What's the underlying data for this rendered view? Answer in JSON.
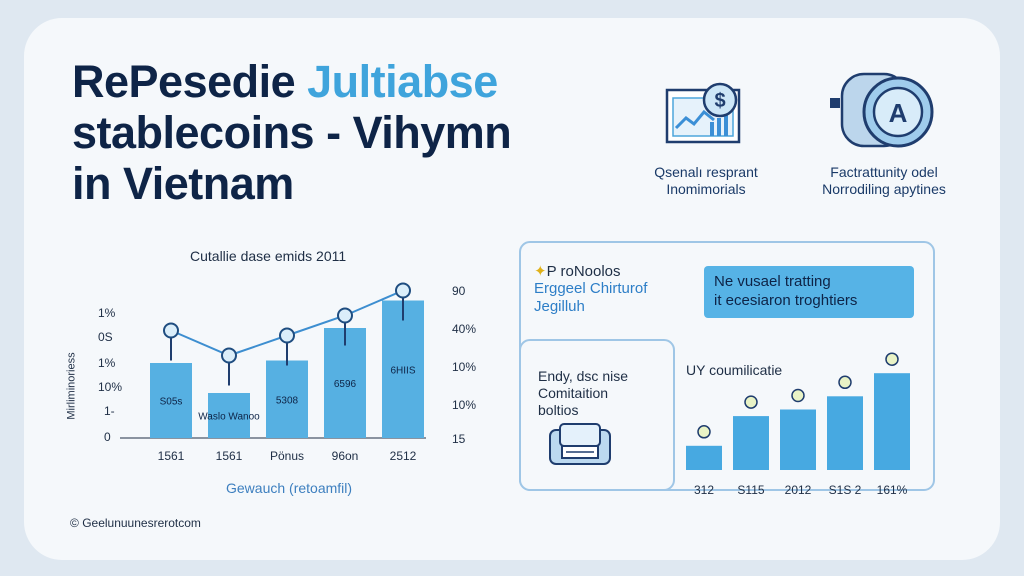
{
  "title": {
    "line1a": "RePesedie",
    "line1b": "Jultiabse",
    "line2": "stablecoins - Vihymn",
    "line3": "in Vietnam"
  },
  "icons": [
    {
      "name": "dollar-chart-icon",
      "caption1": "Qsenalı resprant",
      "caption2": "Inomimorials"
    },
    {
      "name": "coin-device-icon",
      "caption1": "Factrattunity odel",
      "caption2": "Norrodiling apytines"
    }
  ],
  "left_chart": {
    "title": "Cutallie dase emids 2011",
    "y_left_ticks": [
      "1%",
      "0S",
      "1%",
      "10%",
      "1-",
      "0"
    ],
    "y_right_ticks": [
      "90",
      "40%",
      "10%",
      "10%",
      "15"
    ],
    "y_axis_title": "Mirliminoriess",
    "x_axis_title": "Gewauch (retoamfil)"
  },
  "right_panel": {
    "header_line1": "P roNoolos",
    "header_line2": "Erggeel Chirturof",
    "header_line3": "Jegilluh",
    "callout_line1": "Ne vusael tratting",
    "callout_line2": "it ecesiaron troghtiers",
    "sub_line1": "Endy, dsc nise",
    "sub_line2": "Comitaition",
    "sub_line3": "boltios",
    "chart_title": "UY coumilicatie"
  },
  "footer": {
    "symbol": "©",
    "text": "Geelunuunesrerotcom"
  },
  "chart_data": [
    {
      "type": "bar",
      "title": "Cutallie dase emids 2011",
      "xlabel": "Gewauch (retoamfil)",
      "ylabel": "Mirliminoriess",
      "categories": [
        "1561",
        "1561",
        "Pönus",
        "96on",
        "2512"
      ],
      "values": [
        3.0,
        1.8,
        3.1,
        4.4,
        5.5
      ],
      "ylim": [
        0,
        6
      ],
      "bar_labels": [
        "S05s",
        "Waslo Wanoo",
        "5308",
        "6596",
        "6HIIS"
      ],
      "line": {
        "name": "",
        "values": [
          4.3,
          3.3,
          4.1,
          4.9,
          5.9
        ],
        "marker_labels": [
          "",
          "",
          "",
          "",
          ""
        ]
      },
      "colors": {
        "bar": "#56b0e2",
        "line": "#3d8ed0",
        "marker": "#1f4d80"
      }
    },
    {
      "type": "bar",
      "title": "UY coumilicatie",
      "categories": [
        "312",
        "S115",
        "2012",
        "S1S 2",
        "161%"
      ],
      "values": [
        2.2,
        4.9,
        5.5,
        6.7,
        8.8
      ],
      "ylim": [
        0,
        10
      ],
      "colors": {
        "bar": "#47a9e1"
      }
    }
  ]
}
